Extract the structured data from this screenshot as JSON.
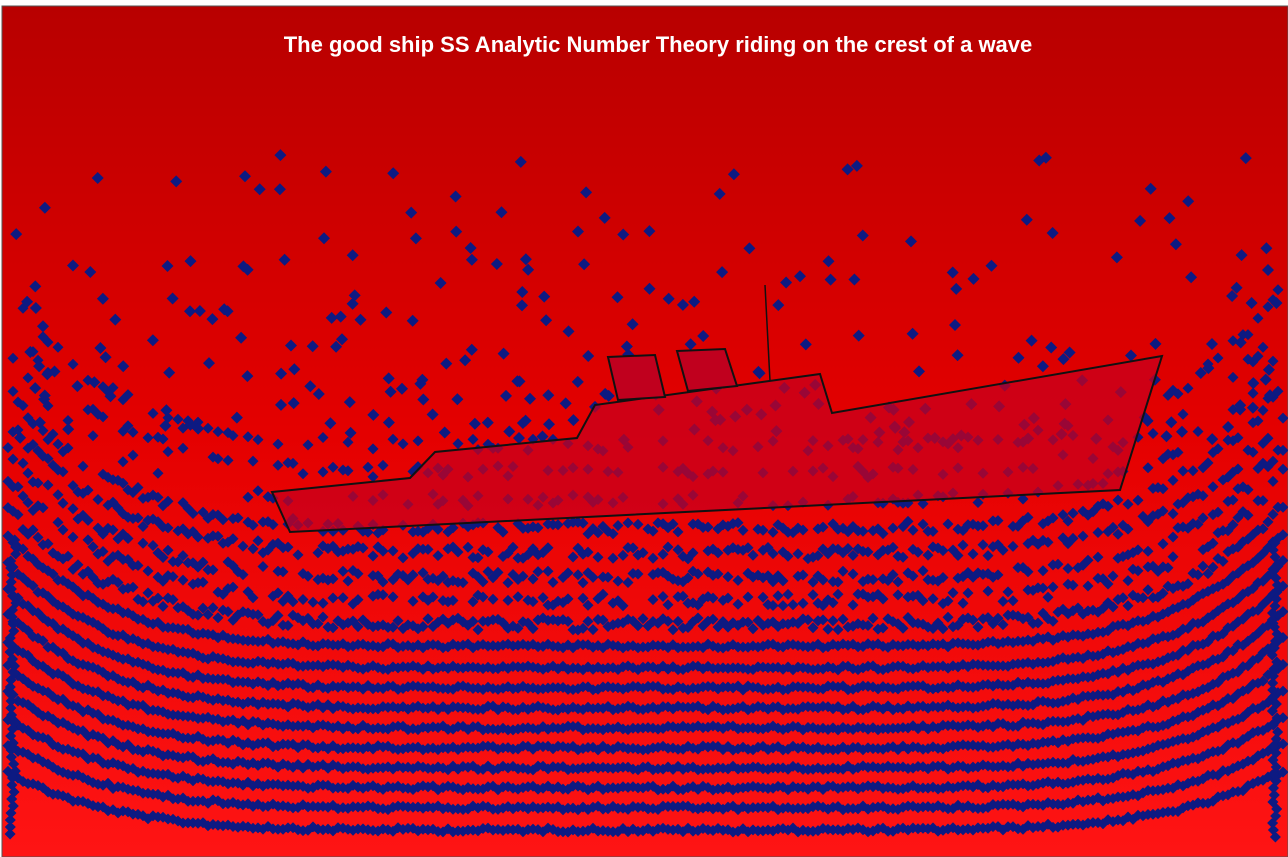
{
  "title": "The good ship SS Analytic Number Theory riding on the crest of a wave"
}
